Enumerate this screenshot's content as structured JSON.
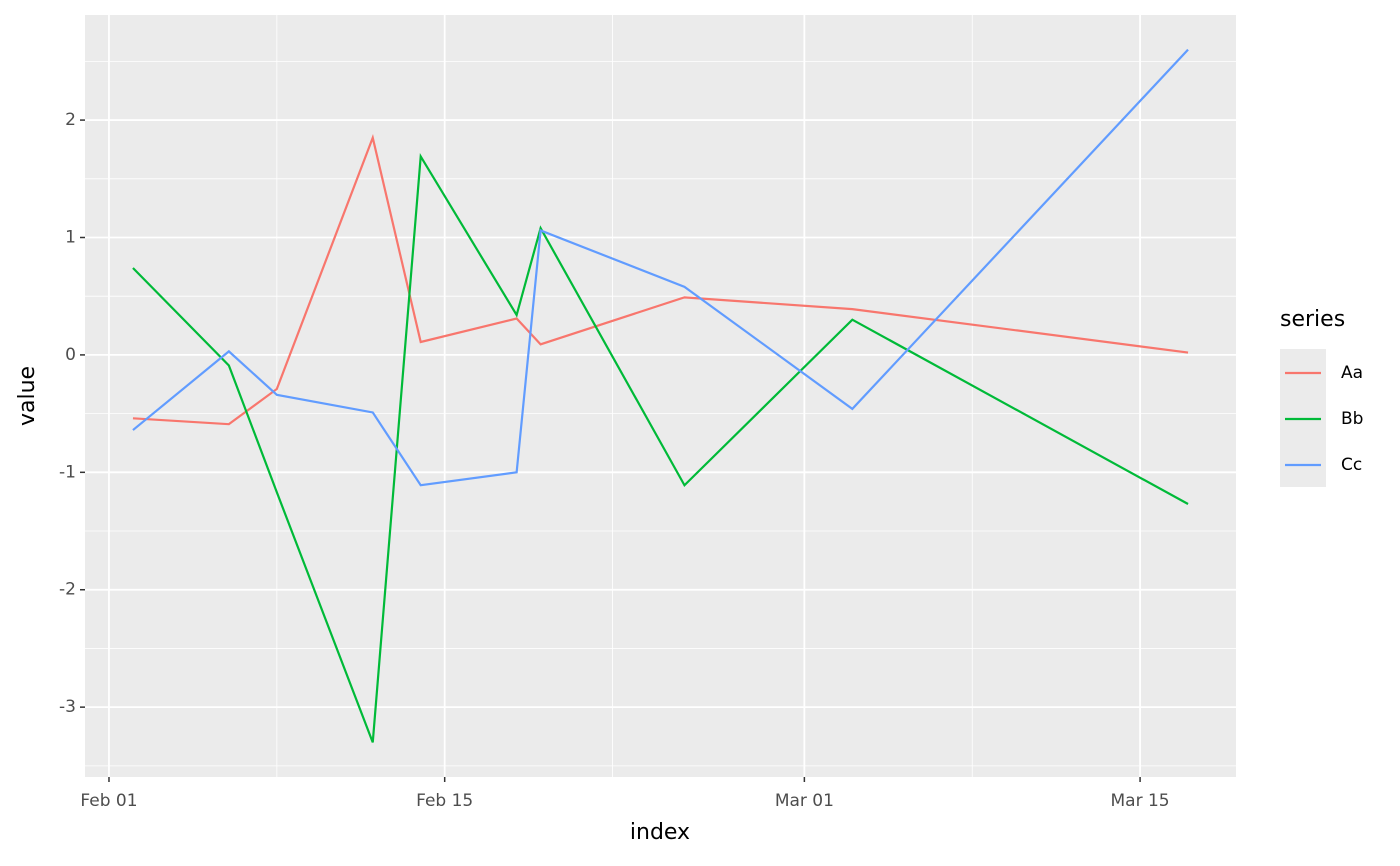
{
  "chart_data": {
    "type": "line",
    "x": [
      "Feb 02",
      "Feb 06",
      "Feb 08",
      "Feb 12",
      "Feb 14",
      "Feb 18",
      "Feb 19",
      "Feb 25",
      "Mar 03",
      "Mar 17"
    ],
    "series": [
      {
        "name": "Aa",
        "color": "#F8766D",
        "values": [
          -0.54,
          -0.59,
          -0.29,
          1.85,
          0.11,
          0.31,
          0.09,
          0.49,
          0.39,
          0.02
        ]
      },
      {
        "name": "Bb",
        "color": "#00BA38",
        "values": [
          0.74,
          -0.09,
          -1.17,
          -3.3,
          1.69,
          0.34,
          1.08,
          -1.11,
          0.3,
          -1.27
        ]
      },
      {
        "name": "Cc",
        "color": "#619CFF",
        "values": [
          -0.64,
          0.03,
          -0.34,
          -0.49,
          -1.11,
          -1.0,
          1.06,
          0.58,
          -0.46,
          2.6
        ]
      }
    ],
    "xlim": [
      "Jan 31",
      "Mar 19"
    ],
    "xticks": [
      "Feb 01",
      "Feb 15",
      "Mar 01",
      "Mar 15"
    ],
    "ylim": [
      -3.595,
      2.895
    ],
    "yticks": [
      -3,
      -2,
      -1,
      0,
      1,
      2
    ],
    "xlabel": "index",
    "ylabel": "value",
    "legend_title": "series",
    "grid": true
  }
}
